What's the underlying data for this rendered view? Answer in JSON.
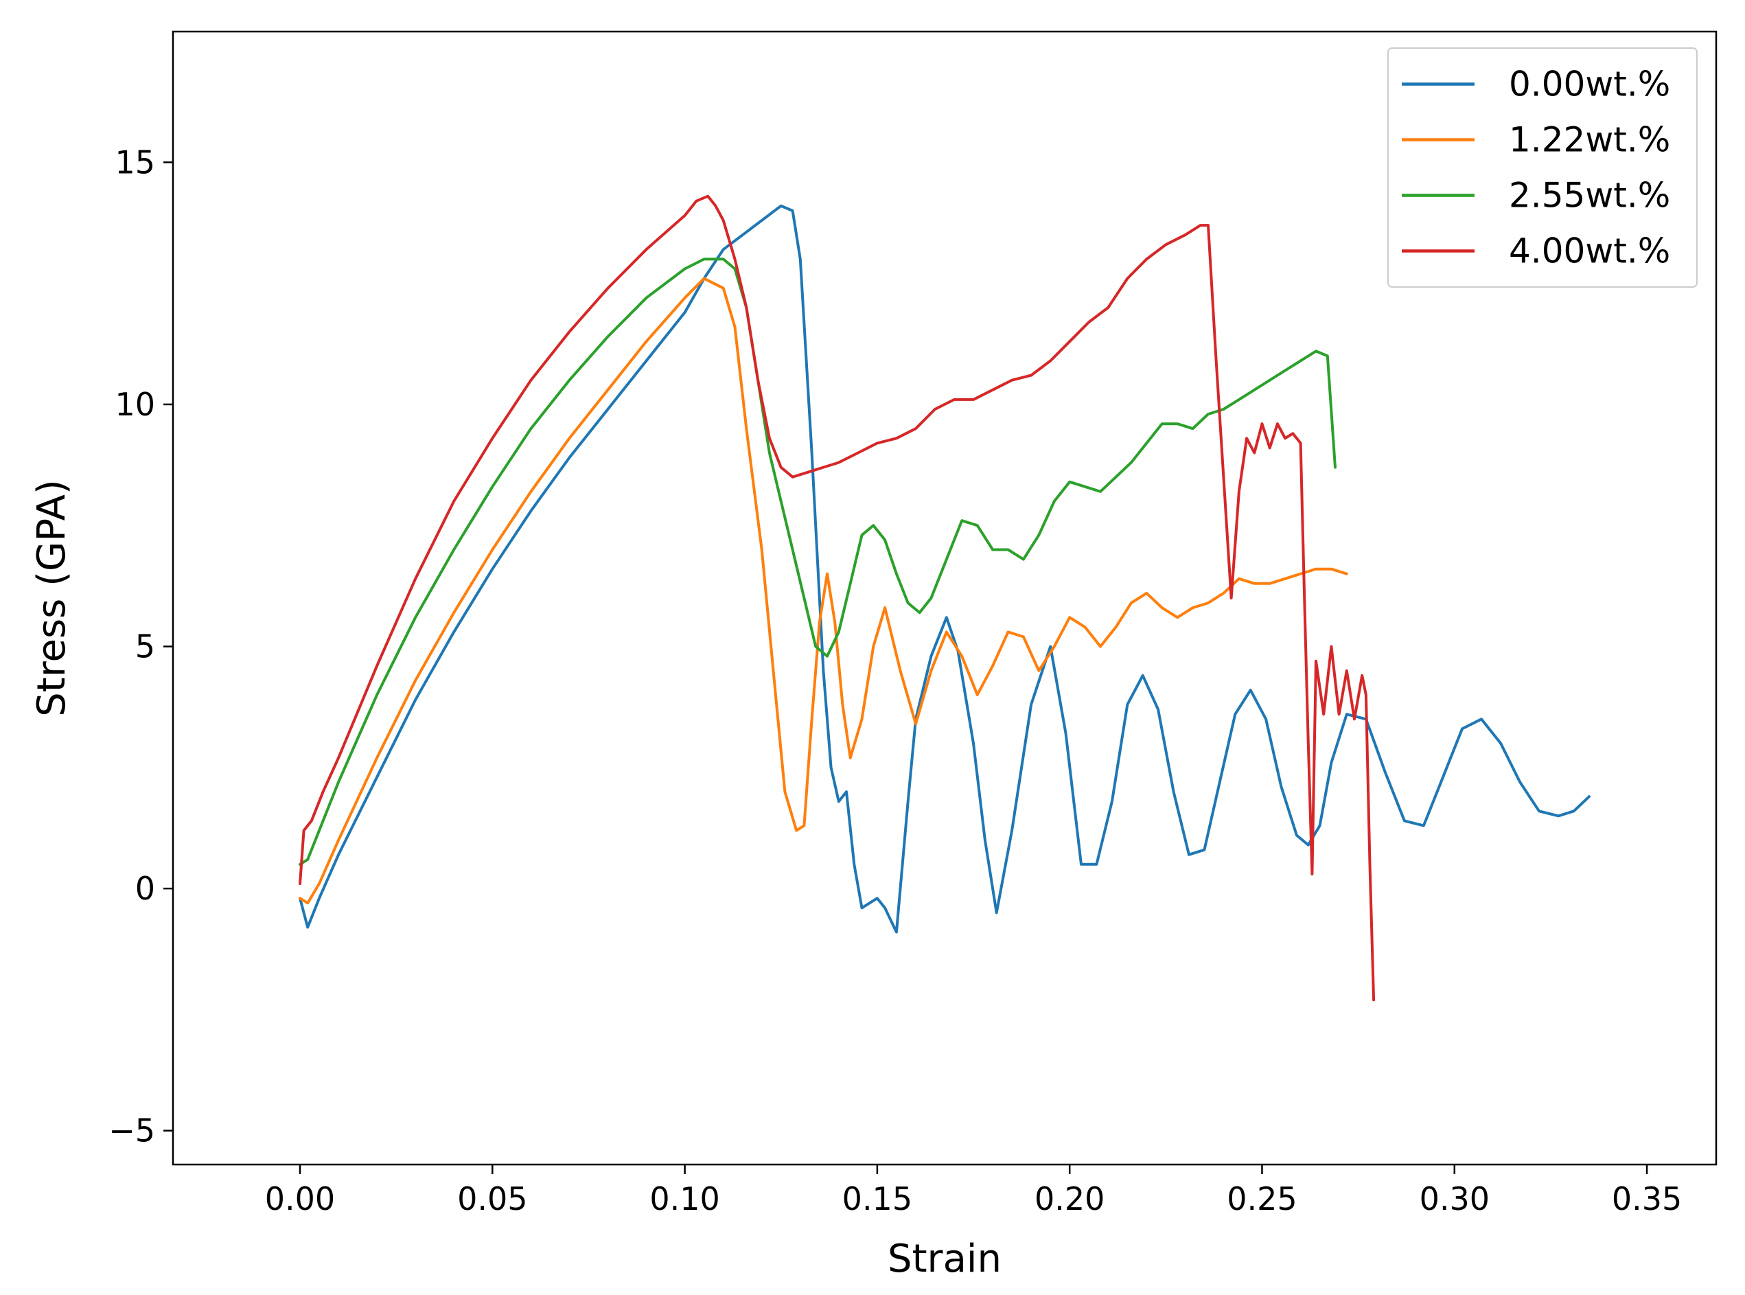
{
  "chart_data": {
    "type": "line",
    "title": "",
    "xlabel": "Strain",
    "ylabel": "Stress (GPA)",
    "xlim": [
      -0.033,
      0.368
    ],
    "ylim": [
      -5.7,
      17.7
    ],
    "xticks": [
      0.0,
      0.05,
      0.1,
      0.15,
      0.2,
      0.25,
      0.3,
      0.35
    ],
    "xtick_labels": [
      "0.00",
      "0.05",
      "0.10",
      "0.15",
      "0.20",
      "0.25",
      "0.30",
      "0.35"
    ],
    "yticks": [
      -5,
      0,
      5,
      10,
      15
    ],
    "ytick_labels": [
      "−5",
      "0",
      "5",
      "10",
      "15"
    ],
    "grid": false,
    "legend_position": "top-right",
    "series": [
      {
        "name": "0.00wt.%",
        "color": "#1f77b4",
        "x": [
          0,
          0.002,
          0.005,
          0.01,
          0.02,
          0.03,
          0.04,
          0.05,
          0.06,
          0.07,
          0.08,
          0.09,
          0.1,
          0.105,
          0.11,
          0.115,
          0.12,
          0.125,
          0.128,
          0.13,
          0.133,
          0.136,
          0.138,
          0.14,
          0.142,
          0.144,
          0.146,
          0.148,
          0.15,
          0.152,
          0.155,
          0.158,
          0.16,
          0.164,
          0.168,
          0.171,
          0.175,
          0.178,
          0.181,
          0.185,
          0.19,
          0.195,
          0.199,
          0.203,
          0.207,
          0.211,
          0.215,
          0.219,
          0.223,
          0.227,
          0.231,
          0.235,
          0.239,
          0.243,
          0.247,
          0.251,
          0.255,
          0.259,
          0.262,
          0.265,
          0.268,
          0.272,
          0.277,
          0.282,
          0.287,
          0.292,
          0.297,
          0.302,
          0.307,
          0.312,
          0.317,
          0.322,
          0.327,
          0.331,
          0.335
        ],
        "y": [
          -0.2,
          -0.8,
          -0.2,
          0.7,
          2.3,
          3.9,
          5.3,
          6.6,
          7.8,
          8.9,
          9.9,
          10.9,
          11.9,
          12.6,
          13.2,
          13.5,
          13.8,
          14.1,
          14.0,
          13.0,
          9.0,
          4.5,
          2.5,
          1.8,
          2.0,
          0.5,
          -0.4,
          -0.3,
          -0.2,
          -0.4,
          -0.9,
          1.8,
          3.5,
          4.8,
          5.6,
          4.9,
          3.0,
          1.0,
          -0.5,
          1.2,
          3.8,
          5.0,
          3.2,
          0.5,
          0.5,
          1.8,
          3.8,
          4.4,
          3.7,
          2.0,
          0.7,
          0.8,
          2.2,
          3.6,
          4.1,
          3.5,
          2.1,
          1.1,
          0.9,
          1.3,
          2.6,
          3.6,
          3.5,
          2.4,
          1.4,
          1.3,
          2.3,
          3.3,
          3.5,
          3.0,
          2.2,
          1.6,
          1.5,
          1.6,
          1.9
        ]
      },
      {
        "name": "1.22wt.%",
        "color": "#ff7f0e",
        "x": [
          0,
          0.002,
          0.005,
          0.01,
          0.02,
          0.03,
          0.04,
          0.05,
          0.06,
          0.07,
          0.08,
          0.09,
          0.1,
          0.105,
          0.11,
          0.113,
          0.116,
          0.12,
          0.123,
          0.126,
          0.129,
          0.131,
          0.133,
          0.135,
          0.137,
          0.139,
          0.141,
          0.143,
          0.146,
          0.149,
          0.152,
          0.156,
          0.16,
          0.164,
          0.168,
          0.172,
          0.176,
          0.18,
          0.184,
          0.188,
          0.192,
          0.196,
          0.2,
          0.204,
          0.208,
          0.212,
          0.216,
          0.22,
          0.224,
          0.228,
          0.232,
          0.236,
          0.24,
          0.244,
          0.248,
          0.252,
          0.256,
          0.26,
          0.264,
          0.268,
          0.272
        ],
        "y": [
          -0.2,
          -0.3,
          0.1,
          1.0,
          2.7,
          4.3,
          5.7,
          7.0,
          8.2,
          9.3,
          10.3,
          11.3,
          12.2,
          12.6,
          12.4,
          11.6,
          9.5,
          7.0,
          4.5,
          2.0,
          1.2,
          1.3,
          3.5,
          5.5,
          6.5,
          5.5,
          3.8,
          2.7,
          3.5,
          5.0,
          5.8,
          4.5,
          3.4,
          4.5,
          5.3,
          4.8,
          4.0,
          4.6,
          5.3,
          5.2,
          4.5,
          5.0,
          5.6,
          5.4,
          5.0,
          5.4,
          5.9,
          6.1,
          5.8,
          5.6,
          5.8,
          5.9,
          6.1,
          6.4,
          6.3,
          6.3,
          6.4,
          6.5,
          6.6,
          6.6,
          6.5
        ]
      },
      {
        "name": "2.55wt.%",
        "color": "#2ca02c",
        "x": [
          0,
          0.002,
          0.005,
          0.01,
          0.02,
          0.03,
          0.04,
          0.05,
          0.06,
          0.07,
          0.08,
          0.09,
          0.1,
          0.105,
          0.11,
          0.113,
          0.116,
          0.119,
          0.122,
          0.125,
          0.128,
          0.131,
          0.134,
          0.137,
          0.14,
          0.143,
          0.146,
          0.149,
          0.152,
          0.155,
          0.158,
          0.161,
          0.164,
          0.168,
          0.172,
          0.176,
          0.18,
          0.184,
          0.188,
          0.192,
          0.196,
          0.2,
          0.204,
          0.208,
          0.212,
          0.216,
          0.22,
          0.224,
          0.228,
          0.232,
          0.236,
          0.24,
          0.244,
          0.248,
          0.252,
          0.256,
          0.26,
          0.264,
          0.267,
          0.269
        ],
        "y": [
          0.5,
          0.6,
          1.2,
          2.2,
          4.0,
          5.6,
          7.0,
          8.3,
          9.5,
          10.5,
          11.4,
          12.2,
          12.8,
          13.0,
          13.0,
          12.8,
          12.0,
          10.5,
          9.0,
          8.0,
          7.0,
          6.0,
          5.0,
          4.8,
          5.3,
          6.3,
          7.3,
          7.5,
          7.2,
          6.5,
          5.9,
          5.7,
          6.0,
          6.8,
          7.6,
          7.5,
          7.0,
          7.0,
          6.8,
          7.3,
          8.0,
          8.4,
          8.3,
          8.2,
          8.5,
          8.8,
          9.2,
          9.6,
          9.6,
          9.5,
          9.8,
          9.9,
          10.1,
          10.3,
          10.5,
          10.7,
          10.9,
          11.1,
          11.0,
          8.7
        ]
      },
      {
        "name": "4.00wt.%",
        "color": "#d62728",
        "x": [
          0,
          0.001,
          0.003,
          0.006,
          0.01,
          0.02,
          0.03,
          0.04,
          0.05,
          0.06,
          0.07,
          0.08,
          0.09,
          0.1,
          0.103,
          0.106,
          0.108,
          0.11,
          0.113,
          0.116,
          0.119,
          0.122,
          0.125,
          0.128,
          0.132,
          0.136,
          0.14,
          0.145,
          0.15,
          0.155,
          0.16,
          0.165,
          0.17,
          0.175,
          0.18,
          0.185,
          0.19,
          0.195,
          0.2,
          0.205,
          0.21,
          0.215,
          0.22,
          0.225,
          0.23,
          0.234,
          0.236,
          0.238,
          0.24,
          0.242,
          0.244,
          0.246,
          0.248,
          0.25,
          0.252,
          0.254,
          0.256,
          0.258,
          0.26,
          0.261,
          0.262,
          0.263,
          0.264,
          0.266,
          0.268,
          0.27,
          0.272,
          0.274,
          0.276,
          0.277,
          0.278,
          0.279
        ],
        "y": [
          0.1,
          1.2,
          1.4,
          2.0,
          2.7,
          4.6,
          6.4,
          8.0,
          9.3,
          10.5,
          11.5,
          12.4,
          13.2,
          13.9,
          14.2,
          14.3,
          14.1,
          13.8,
          13.0,
          12.0,
          10.5,
          9.3,
          8.7,
          8.5,
          8.6,
          8.7,
          8.8,
          9.0,
          9.2,
          9.3,
          9.5,
          9.9,
          10.1,
          10.1,
          10.3,
          10.5,
          10.6,
          10.9,
          11.3,
          11.7,
          12.0,
          12.6,
          13.0,
          13.3,
          13.5,
          13.7,
          13.7,
          11.0,
          8.5,
          6.0,
          8.2,
          9.3,
          9.0,
          9.6,
          9.1,
          9.6,
          9.3,
          9.4,
          9.2,
          6.0,
          3.0,
          0.3,
          4.7,
          3.6,
          5.0,
          3.6,
          4.5,
          3.5,
          4.4,
          4.0,
          0.5,
          -2.3
        ]
      }
    ]
  }
}
